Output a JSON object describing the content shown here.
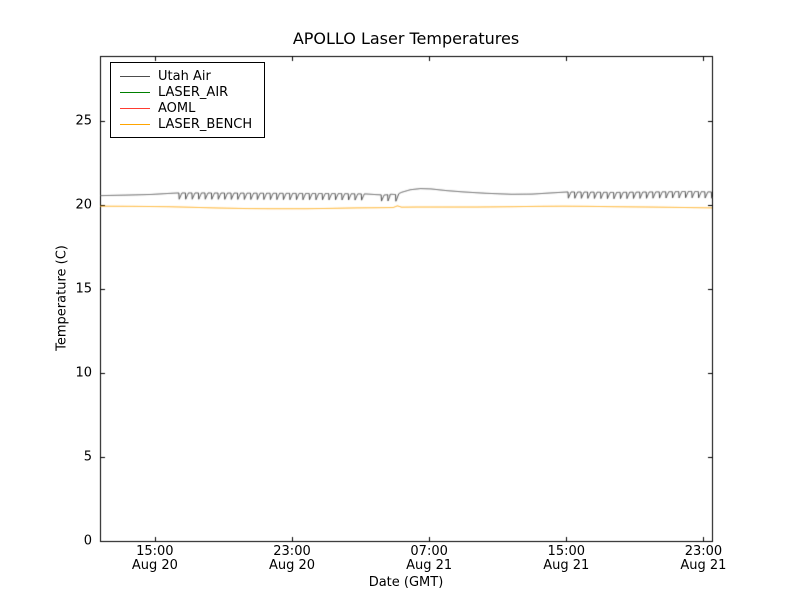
{
  "figure": {
    "background_color": "#ffffff",
    "text_color": "#000000"
  },
  "chart_data": {
    "type": "line",
    "title": "APOLLO Laser Temperatures",
    "xlabel": "Date (GMT)",
    "ylabel": "Temperature (C)",
    "ylim": [
      0,
      28.9
    ],
    "yticks": [
      0,
      5,
      10,
      15,
      20,
      25
    ],
    "xlim_hours": [
      0,
      35.7
    ],
    "xticks": [
      {
        "hours": 3.2,
        "time": "15:00",
        "date": "Aug 20"
      },
      {
        "hours": 11.2,
        "time": "23:00",
        "date": "Aug 20"
      },
      {
        "hours": 19.2,
        "time": "07:00",
        "date": "Aug 21"
      },
      {
        "hours": 27.2,
        "time": "15:00",
        "date": "Aug 21"
      },
      {
        "hours": 35.2,
        "time": "23:00",
        "date": "Aug 21"
      }
    ],
    "legend_position": "upper left",
    "grid": false,
    "series": [
      {
        "name": "Utah Air",
        "color": "#4d4d4d",
        "baseline": [
          [
            0,
            20.58
          ],
          [
            1.5,
            20.61
          ],
          [
            3,
            20.65
          ],
          [
            4,
            20.71
          ],
          [
            4.6,
            20.74
          ],
          [
            6,
            20.74
          ],
          [
            8,
            20.73
          ],
          [
            10,
            20.72
          ],
          [
            12,
            20.71
          ],
          [
            14,
            20.7
          ],
          [
            15.5,
            20.68
          ],
          [
            16.1,
            20.64
          ],
          [
            16.6,
            20.62
          ],
          [
            17.0,
            20.66
          ],
          [
            17.3,
            20.64
          ],
          [
            17.6,
            20.78
          ],
          [
            18.1,
            20.93
          ],
          [
            18.7,
            21.0
          ],
          [
            19.3,
            20.98
          ],
          [
            20.2,
            20.88
          ],
          [
            21.2,
            20.8
          ],
          [
            22.5,
            20.72
          ],
          [
            24.0,
            20.66
          ],
          [
            25.2,
            20.67
          ],
          [
            26.3,
            20.74
          ],
          [
            27.3,
            20.8
          ],
          [
            28.5,
            20.79
          ],
          [
            30,
            20.77
          ],
          [
            31.5,
            20.79
          ],
          [
            33,
            20.81
          ],
          [
            34.5,
            20.83
          ],
          [
            35.7,
            20.8
          ]
        ],
        "dips": {
          "intervals": [
            [
              4.6,
              15.5
            ],
            [
              16.4,
              16.9
            ],
            [
              17.25,
              17.5
            ],
            [
              27.3,
              35.7
            ]
          ],
          "period": 0.38,
          "depth": 0.42,
          "width": 0.18
        }
      },
      {
        "name": "LASER_AIR",
        "color": "#008000",
        "baseline": []
      },
      {
        "name": "AOML",
        "color": "#ff3b30",
        "baseline": []
      },
      {
        "name": "LASER_BENCH",
        "color": "#ffa500",
        "baseline": [
          [
            0,
            19.95
          ],
          [
            2,
            19.94
          ],
          [
            4,
            19.92
          ],
          [
            5.5,
            19.88
          ],
          [
            7,
            19.84
          ],
          [
            8.5,
            19.81
          ],
          [
            10,
            19.8
          ],
          [
            12,
            19.8
          ],
          [
            13.5,
            19.82
          ],
          [
            15,
            19.85
          ],
          [
            16.2,
            19.86
          ],
          [
            17.1,
            19.87
          ],
          [
            17.35,
            19.97
          ],
          [
            17.6,
            19.89
          ],
          [
            18.5,
            19.9
          ],
          [
            20,
            19.9
          ],
          [
            22,
            19.9
          ],
          [
            24,
            19.92
          ],
          [
            25.5,
            19.94
          ],
          [
            27,
            19.95
          ],
          [
            28.5,
            19.94
          ],
          [
            30,
            19.92
          ],
          [
            32,
            19.9
          ],
          [
            33.5,
            19.88
          ],
          [
            35.7,
            19.85
          ]
        ]
      }
    ]
  }
}
